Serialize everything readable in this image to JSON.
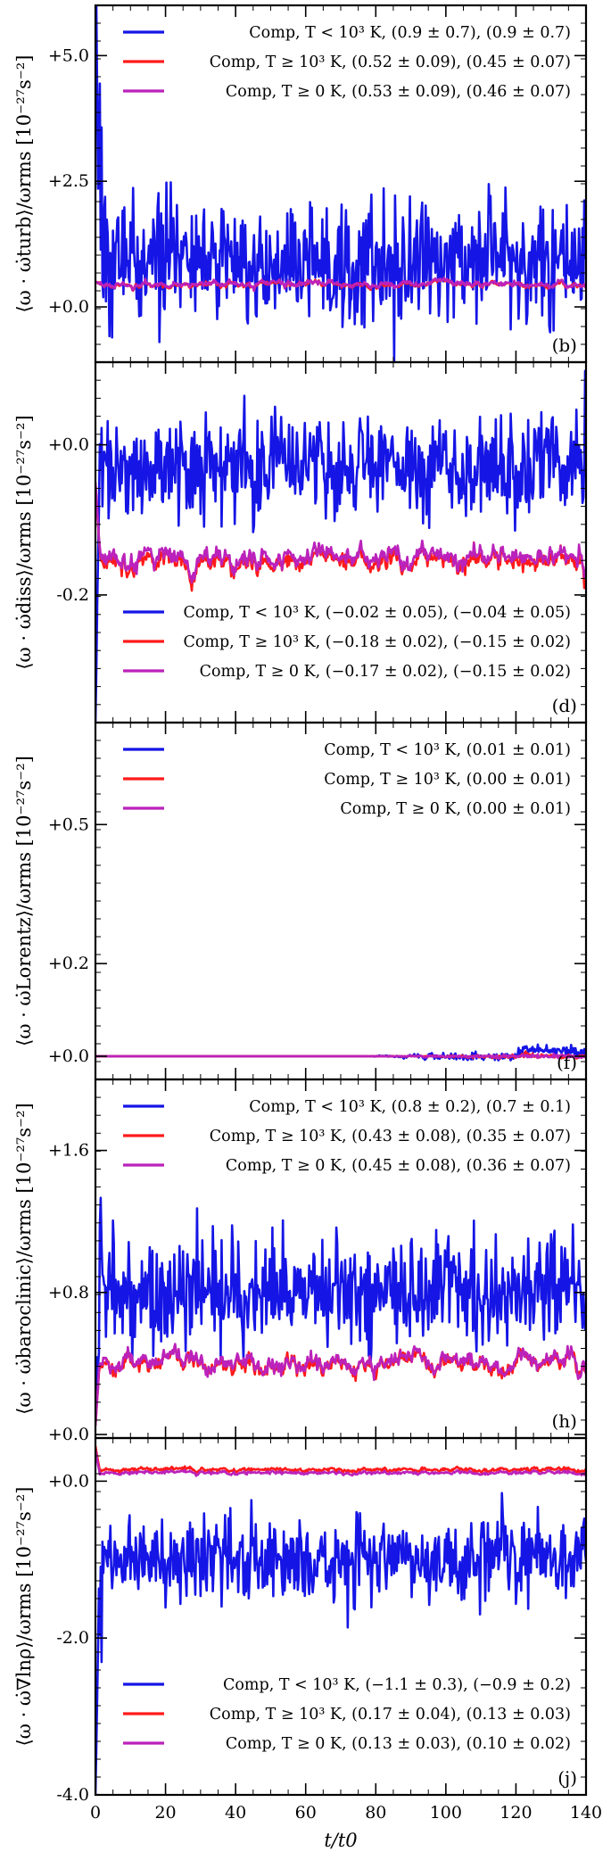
{
  "colors": {
    "low": "#1515e6",
    "high": "#ff1a1a",
    "all": "#bb22bb"
  },
  "xaxis": {
    "label": "t/t0",
    "ticks": [
      0,
      20,
      40,
      60,
      80,
      100,
      120,
      140
    ],
    "range": [
      0,
      140
    ]
  },
  "chart_data": [
    {
      "type": "line",
      "panel": "(b)",
      "ylabel": "⟨ω · ω̇turb⟩/ωrms [10⁻²⁷s⁻²]",
      "ylim": [
        -1.1,
        6.0
      ],
      "yticks": [
        {
          "value": 5.0,
          "label": "+5.0"
        },
        {
          "value": 2.5,
          "label": "+2.5"
        },
        {
          "value": 0.0,
          "label": "+0.0"
        }
      ],
      "legend_position": "top-right",
      "series": [
        {
          "name": "Comp, T < 10³ K, (0.9 ± 0.7), (0.9 ± 0.7)",
          "color_key": "low",
          "mean": 0.9,
          "sd": 0.7,
          "start": 7.5,
          "spike": 2.6
        },
        {
          "name": "Comp, T ≥ 10³ K, (0.52 ± 0.09), (0.45 ± 0.07)",
          "color_key": "high",
          "mean": 0.45,
          "sd": 0.08,
          "start": 0.5
        },
        {
          "name": "Comp, T ≥ 0 K, (0.53 ± 0.09), (0.46 ± 0.07)",
          "color_key": "all",
          "mean": 0.46,
          "sd": 0.08,
          "start": 0.5
        }
      ]
    },
    {
      "type": "line",
      "panel": "(d)",
      "ylabel": "⟨ω · ω̇diss⟩/ωrms [10⁻²⁷s⁻²]",
      "ylim": [
        -0.37,
        0.11
      ],
      "yticks": [
        {
          "value": 0.0,
          "label": "+0.0"
        },
        {
          "value": -0.2,
          "label": "-0.2"
        }
      ],
      "legend_position": "bottom-right",
      "series": [
        {
          "name": "Comp, T < 10³ K, (−0.02 ± 0.05), (−0.04 ± 0.05)",
          "color_key": "low",
          "mean": -0.03,
          "sd": 0.04,
          "start": -0.37,
          "spike": 0.03
        },
        {
          "name": "Comp, T ≥ 10³ K, (−0.18 ± 0.02), (−0.15 ± 0.02)",
          "color_key": "high",
          "mean": -0.155,
          "sd": 0.018,
          "start": -0.05
        },
        {
          "name": "Comp, T ≥ 0 K, (−0.17 ± 0.02), (−0.15 ± 0.02)",
          "color_key": "all",
          "mean": -0.15,
          "sd": 0.018,
          "start": -0.05
        }
      ]
    },
    {
      "type": "line",
      "panel": "(f)",
      "ylabel": "⟨ω · ω̇Lorentz⟩/ωrms [10⁻²⁷s⁻²]",
      "ylim": [
        -0.05,
        0.72
      ],
      "yticks": [
        {
          "value": 0.5,
          "label": "+0.5"
        },
        {
          "value": 0.2,
          "label": "+0.2"
        },
        {
          "value": 0.0,
          "label": "+0.0"
        }
      ],
      "legend_position": "top-right",
      "series": [
        {
          "name": "Comp, T < 10³ K, (0.01 ± 0.01)",
          "color_key": "low",
          "mean": 0.0,
          "sd": 0.0,
          "growth_start": 75,
          "growth_sd": 0.012
        },
        {
          "name": "Comp, T ≥ 10³ K, (0.00 ± 0.01)",
          "color_key": "high",
          "mean": 0.0,
          "sd": 0.0,
          "growth_start": 80,
          "growth_sd": 0.005
        },
        {
          "name": "Comp, T ≥ 0 K, (0.00 ± 0.01)",
          "color_key": "all",
          "mean": 0.0,
          "sd": 0.0,
          "growth_start": 80,
          "growth_sd": 0.005
        }
      ]
    },
    {
      "type": "line",
      "panel": "(h)",
      "ylabel": "⟨ω · ω̇baroclinic⟩/ωrms [10⁻²⁷s⁻²]",
      "ylim": [
        -0.02,
        2.0
      ],
      "yticks": [
        {
          "value": 1.6,
          "label": "+1.6"
        },
        {
          "value": 0.8,
          "label": "+0.8"
        },
        {
          "value": 0.0,
          "label": "+0.0"
        }
      ],
      "legend_position": "top-right",
      "series": [
        {
          "name": "Comp, T < 10³ K, (0.8 ± 0.2), (0.7 ± 0.1)",
          "color_key": "low",
          "mean": 0.8,
          "sd": 0.18,
          "start": 0.05,
          "spike": 0.35
        },
        {
          "name": "Comp, T ≥ 10³ K, (0.43 ± 0.08), (0.35 ± 0.07)",
          "color_key": "high",
          "mean": 0.4,
          "sd": 0.07,
          "start": 0.05
        },
        {
          "name": "Comp, T ≥ 0 K, (0.45 ± 0.08), (0.36 ± 0.07)",
          "color_key": "all",
          "mean": 0.41,
          "sd": 0.07,
          "start": 0.05
        }
      ]
    },
    {
      "type": "line",
      "panel": "(j)",
      "ylabel": "⟨ω · ω̇∇lnρ⟩/ωrms [10⁻²⁷s⁻²]",
      "ylim": [
        -4.0,
        0.55
      ],
      "yticks": [
        {
          "value": 0.0,
          "label": "+0.0"
        },
        {
          "value": -2.0,
          "label": "-2.0"
        },
        {
          "value": -4.0,
          "label": "-4.0"
        }
      ],
      "legend_position": "bottom-right",
      "series": [
        {
          "name": "Comp, T < 10³ K, (−1.1 ± 0.3), (−0.9 ± 0.2)",
          "color_key": "low",
          "mean": -1.0,
          "sd": 0.3,
          "start": -4.0,
          "spike": -0.7
        },
        {
          "name": "Comp, T ≥ 10³ K, (0.17 ± 0.04), (0.13 ± 0.03)",
          "color_key": "high",
          "mean": 0.15,
          "sd": 0.035,
          "start": 0.45
        },
        {
          "name": "Comp, T ≥ 0 K, (0.13 ± 0.03), (0.10 ± 0.02)",
          "color_key": "all",
          "mean": 0.11,
          "sd": 0.03,
          "start": 0.4
        }
      ]
    }
  ]
}
